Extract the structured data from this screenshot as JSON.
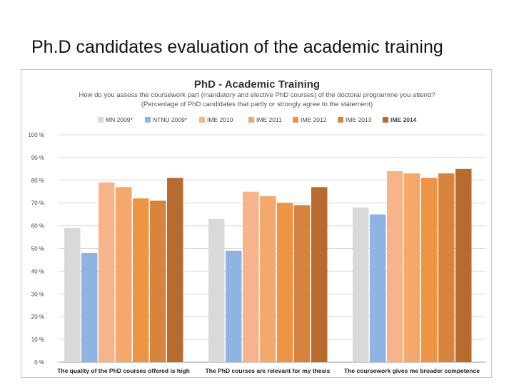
{
  "slide": {
    "title": "Ph.D candidates evaluation of the academic training"
  },
  "chart_data": {
    "type": "bar",
    "title": "PhD - Academic Training",
    "subtitle_lines": [
      "How do you assess the coursework part (mandatory and elective PhD courses) of the doctoral programme you attend?",
      "(Percentage of PhD candidates that partly or strongly agree to the statement)"
    ],
    "categories": [
      "The quality of the PhD courses offered is high",
      "The PhD courses are relevant for my thesis",
      "The coursework gives me broader competence"
    ],
    "series": [
      {
        "name": "MN 2009*",
        "color": "#d9d9d9",
        "values": [
          59,
          63,
          68
        ]
      },
      {
        "name": "NTNU 2009*",
        "color": "#8eb4e3",
        "values": [
          48,
          49,
          65
        ]
      },
      {
        "name": "IME 2010",
        "color": "#f7b38a",
        "values": [
          79,
          75,
          84
        ]
      },
      {
        "name": "IME 2011",
        "color": "#f5a86b",
        "values": [
          77,
          73,
          83
        ]
      },
      {
        "name": "IME 2012",
        "color": "#ee9445",
        "values": [
          72,
          70,
          81
        ]
      },
      {
        "name": "IME 2013",
        "color": "#d9843e",
        "values": [
          71,
          69,
          83
        ]
      },
      {
        "name": "IME 2014",
        "color": "#b86b2f",
        "values": [
          81,
          77,
          85
        ]
      }
    ],
    "legend_bold": "IME 2014",
    "ylim": [
      0,
      100
    ],
    "yticks": [
      "0 %",
      "10 %",
      "20 %",
      "30 %",
      "40 %",
      "50 %",
      "60 %",
      "70 %",
      "80 %",
      "90 %",
      "100 %"
    ],
    "legend_position": "top",
    "grid": true
  }
}
